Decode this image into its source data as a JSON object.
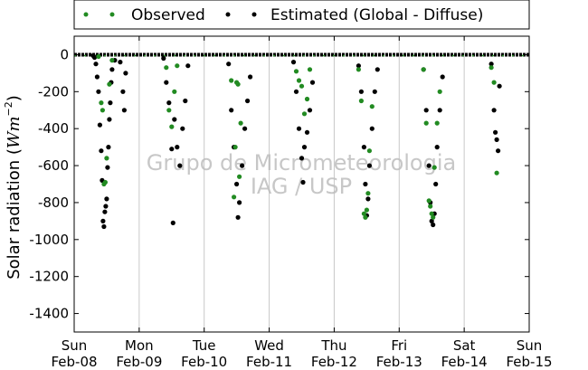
{
  "chart_data": {
    "type": "scatter",
    "title": "",
    "xlabel": "",
    "ylabel": "Solar radiation (Wm^-2)",
    "ylabel_text": "Solar radiation (",
    "ylabel_unit_base": "Wm",
    "ylabel_unit_exp": "−2",
    "ylabel_close": ")",
    "ylim": [
      -1500,
      100
    ],
    "yticks": [
      0,
      -200,
      -400,
      -600,
      -800,
      -1000,
      -1200,
      -1400
    ],
    "xlim": [
      "2015-02-08",
      "2015-02-15"
    ],
    "x_ticks": [
      {
        "date": "2015-02-08",
        "weekday": "Sun",
        "label": "Feb-08"
      },
      {
        "date": "2015-02-09",
        "weekday": "Mon",
        "label": "Feb-09"
      },
      {
        "date": "2015-02-10",
        "weekday": "Tue",
        "label": "Feb-10"
      },
      {
        "date": "2015-02-11",
        "weekday": "Wed",
        "label": "Feb-11"
      },
      {
        "date": "2015-02-12",
        "weekday": "Thu",
        "label": "Feb-12"
      },
      {
        "date": "2015-02-13",
        "weekday": "Fri",
        "label": "Feb-13"
      },
      {
        "date": "2015-02-14",
        "weekday": "Sat",
        "label": "Feb-14"
      },
      {
        "date": "2015-02-15",
        "weekday": "Sun",
        "label": "Feb-15"
      }
    ],
    "grid": "vertical",
    "legend_placement": "top-center, outside plot",
    "watermark": [
      "Grupo de Micrometeorologia",
      "IAG / USP"
    ],
    "series": [
      {
        "name": "Observed",
        "color": "#228b22",
        "marker": "dot",
        "points": [
          [
            "2015-02-08T09:00",
            -10
          ],
          [
            "2015-02-08T10:00",
            -260
          ],
          [
            "2015-02-08T10:30",
            -300
          ],
          [
            "2015-02-08T11:00",
            -700
          ],
          [
            "2015-02-08T11:30",
            -690
          ],
          [
            "2015-02-08T12:00",
            -560
          ],
          [
            "2015-02-08T13:00",
            -160
          ],
          [
            "2015-02-08T14:00",
            -30
          ],
          [
            "2015-02-09T10:00",
            -70
          ],
          [
            "2015-02-09T11:00",
            -300
          ],
          [
            "2015-02-09T12:00",
            -390
          ],
          [
            "2015-02-09T13:00",
            -200
          ],
          [
            "2015-02-09T14:00",
            -60
          ],
          [
            "2015-02-10T10:00",
            -140
          ],
          [
            "2015-02-10T11:00",
            -770
          ],
          [
            "2015-02-10T11:30",
            -500
          ],
          [
            "2015-02-10T12:00",
            -150
          ],
          [
            "2015-02-10T12:30",
            -160
          ],
          [
            "2015-02-10T13:00",
            -660
          ],
          [
            "2015-02-10T13:30",
            -370
          ],
          [
            "2015-02-11T10:00",
            -90
          ],
          [
            "2015-02-11T11:00",
            -140
          ],
          [
            "2015-02-11T12:00",
            -170
          ],
          [
            "2015-02-11T13:00",
            -320
          ],
          [
            "2015-02-11T14:00",
            -240
          ],
          [
            "2015-02-11T15:00",
            -80
          ],
          [
            "2015-02-12T09:00",
            -80
          ],
          [
            "2015-02-12T10:00",
            -250
          ],
          [
            "2015-02-12T11:00",
            -860
          ],
          [
            "2015-02-12T11:30",
            -880
          ],
          [
            "2015-02-12T12:00",
            -840
          ],
          [
            "2015-02-12T12:30",
            -750
          ],
          [
            "2015-02-12T13:00",
            -520
          ],
          [
            "2015-02-12T14:00",
            -280
          ],
          [
            "2015-02-13T09:00",
            -80
          ],
          [
            "2015-02-13T10:00",
            -370
          ],
          [
            "2015-02-13T11:00",
            -790
          ],
          [
            "2015-02-13T11:30",
            -820
          ],
          [
            "2015-02-13T12:00",
            -860
          ],
          [
            "2015-02-13T12:30",
            -880
          ],
          [
            "2015-02-13T13:00",
            -610
          ],
          [
            "2015-02-13T14:00",
            -370
          ],
          [
            "2015-02-13T15:00",
            -200
          ],
          [
            "2015-02-14T10:00",
            -70
          ],
          [
            "2015-02-14T11:00",
            -150
          ],
          [
            "2015-02-14T12:00",
            -640
          ]
        ]
      },
      {
        "name": "Estimated (Global - Diffuse)",
        "color": "#000000",
        "marker": "dot",
        "points": [
          [
            "2015-02-08T07:00",
            -5
          ],
          [
            "2015-02-08T07:30",
            -15
          ],
          [
            "2015-02-08T08:00",
            -50
          ],
          [
            "2015-02-08T08:30",
            -120
          ],
          [
            "2015-02-08T09:00",
            -200
          ],
          [
            "2015-02-08T09:30",
            -380
          ],
          [
            "2015-02-08T10:00",
            -520
          ],
          [
            "2015-02-08T10:20",
            -680
          ],
          [
            "2015-02-08T10:40",
            -900
          ],
          [
            "2015-02-08T11:00",
            -930
          ],
          [
            "2015-02-08T11:20",
            -850
          ],
          [
            "2015-02-08T11:40",
            -820
          ],
          [
            "2015-02-08T12:00",
            -780
          ],
          [
            "2015-02-08T12:20",
            -610
          ],
          [
            "2015-02-08T12:40",
            -500
          ],
          [
            "2015-02-08T13:00",
            -350
          ],
          [
            "2015-02-08T13:20",
            -260
          ],
          [
            "2015-02-08T13:40",
            -150
          ],
          [
            "2015-02-08T14:00",
            -80
          ],
          [
            "2015-02-08T15:00",
            -30
          ],
          [
            "2015-02-08T17:00",
            -40
          ],
          [
            "2015-02-08T18:00",
            -200
          ],
          [
            "2015-02-08T18:30",
            -300
          ],
          [
            "2015-02-08T19:00",
            -100
          ],
          [
            "2015-02-09T09:00",
            -20
          ],
          [
            "2015-02-09T10:00",
            -150
          ],
          [
            "2015-02-09T11:00",
            -260
          ],
          [
            "2015-02-09T12:00",
            -510
          ],
          [
            "2015-02-09T12:30",
            -910
          ],
          [
            "2015-02-09T13:00",
            -350
          ],
          [
            "2015-02-09T14:00",
            -500
          ],
          [
            "2015-02-09T15:00",
            -600
          ],
          [
            "2015-02-09T16:00",
            -400
          ],
          [
            "2015-02-09T17:00",
            -250
          ],
          [
            "2015-02-09T18:00",
            -60
          ],
          [
            "2015-02-10T09:00",
            -50
          ],
          [
            "2015-02-10T10:00",
            -300
          ],
          [
            "2015-02-10T11:00",
            -500
          ],
          [
            "2015-02-10T12:00",
            -700
          ],
          [
            "2015-02-10T12:30",
            -880
          ],
          [
            "2015-02-10T13:00",
            -800
          ],
          [
            "2015-02-10T14:00",
            -600
          ],
          [
            "2015-02-10T15:00",
            -400
          ],
          [
            "2015-02-10T16:00",
            -250
          ],
          [
            "2015-02-10T17:00",
            -120
          ],
          [
            "2015-02-11T09:00",
            -40
          ],
          [
            "2015-02-11T10:00",
            -200
          ],
          [
            "2015-02-11T11:00",
            -400
          ],
          [
            "2015-02-11T12:00",
            -560
          ],
          [
            "2015-02-11T12:30",
            -690
          ],
          [
            "2015-02-11T13:00",
            -500
          ],
          [
            "2015-02-11T14:00",
            -420
          ],
          [
            "2015-02-11T15:00",
            -300
          ],
          [
            "2015-02-11T16:00",
            -150
          ],
          [
            "2015-02-12T09:00",
            -60
          ],
          [
            "2015-02-12T10:00",
            -200
          ],
          [
            "2015-02-12T11:00",
            -500
          ],
          [
            "2015-02-12T11:30",
            -700
          ],
          [
            "2015-02-12T12:00",
            -870
          ],
          [
            "2015-02-12T12:30",
            -780
          ],
          [
            "2015-02-12T13:00",
            -600
          ],
          [
            "2015-02-12T14:00",
            -400
          ],
          [
            "2015-02-12T15:00",
            -200
          ],
          [
            "2015-02-12T16:00",
            -80
          ],
          [
            "2015-02-13T09:00",
            -80
          ],
          [
            "2015-02-13T10:00",
            -300
          ],
          [
            "2015-02-13T11:00",
            -600
          ],
          [
            "2015-02-13T11:30",
            -800
          ],
          [
            "2015-02-13T12:00",
            -900
          ],
          [
            "2015-02-13T12:30",
            -920
          ],
          [
            "2015-02-13T13:00",
            -860
          ],
          [
            "2015-02-13T13:30",
            -700
          ],
          [
            "2015-02-13T14:00",
            -500
          ],
          [
            "2015-02-13T15:00",
            -300
          ],
          [
            "2015-02-13T16:00",
            -120
          ],
          [
            "2015-02-14T10:00",
            -50
          ],
          [
            "2015-02-14T11:00",
            -300
          ],
          [
            "2015-02-14T11:30",
            -420
          ],
          [
            "2015-02-14T12:00",
            -460
          ],
          [
            "2015-02-14T12:30",
            -520
          ],
          [
            "2015-02-14T13:00",
            -170
          ]
        ]
      }
    ]
  }
}
